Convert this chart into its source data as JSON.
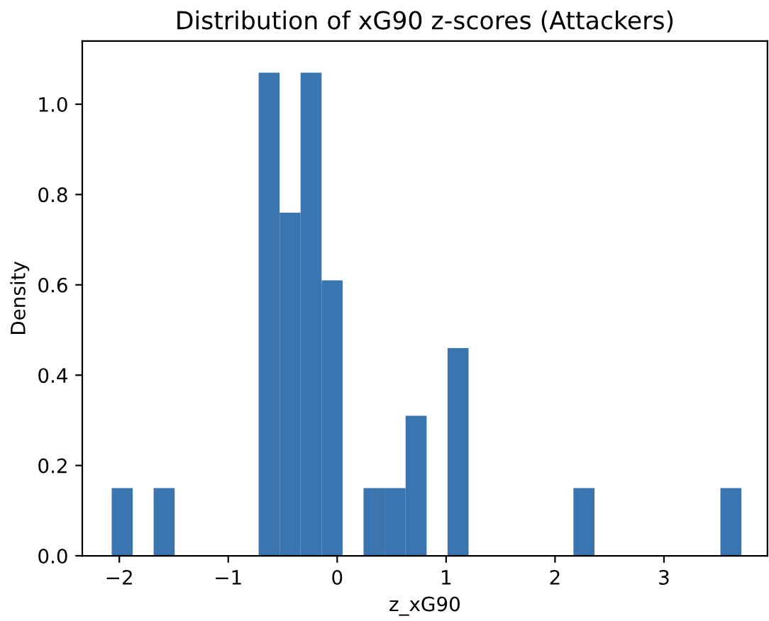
{
  "chart_data": {
    "type": "histogram",
    "title": "Distribution of xG90 z-scores (Attackers)",
    "xlabel": "z_xG90",
    "ylabel": "Density",
    "bins": [
      -2.07,
      -1.877,
      -1.685,
      -1.492,
      -1.299,
      -1.107,
      -0.914,
      -0.721,
      -0.528,
      -0.336,
      -0.143,
      0.05,
      0.242,
      0.435,
      0.628,
      0.821,
      1.013,
      1.206,
      1.399,
      1.591,
      1.784,
      1.977,
      2.169,
      2.362,
      2.555,
      2.748,
      2.94,
      3.133,
      3.326,
      3.518,
      3.711
    ],
    "values": [
      0.15,
      0,
      0.15,
      0,
      0,
      0,
      0,
      1.07,
      0.76,
      1.07,
      0.61,
      0,
      0.15,
      0.15,
      0.31,
      0,
      0.46,
      0,
      0,
      0,
      0,
      0,
      0.15,
      0,
      0,
      0,
      0,
      0,
      0,
      0.15
    ],
    "color": "#3b75af",
    "xlim": [
      -2.34,
      3.95
    ],
    "ylim": [
      0,
      1.14
    ],
    "xticks": [
      {
        "value": -2,
        "label": "−2"
      },
      {
        "value": -1,
        "label": "−1"
      },
      0,
      1,
      2,
      3
    ],
    "yticks": [
      {
        "value": 0,
        "label": "0.0"
      },
      0.2,
      0.4,
      0.6,
      0.8,
      {
        "value": 1,
        "label": "1.0"
      }
    ],
    "grid": false,
    "legend": false
  }
}
